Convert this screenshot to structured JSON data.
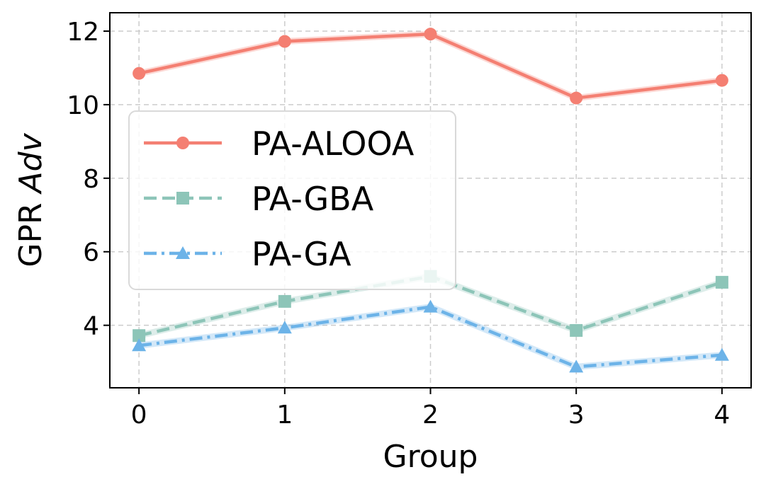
{
  "chart_data": {
    "type": "line",
    "title": "",
    "xlabel": "Group",
    "ylabel_prefix": "GPR ",
    "ylabel_italic": "Adv",
    "x": [
      0,
      1,
      2,
      3,
      4
    ],
    "xticks": [
      "0",
      "1",
      "2",
      "3",
      "4"
    ],
    "xlim": [
      -0.2,
      4.2
    ],
    "yticks": [
      "4",
      "6",
      "8",
      "10",
      "12"
    ],
    "ytick_values": [
      4,
      6,
      8,
      10,
      12
    ],
    "ylim": [
      2.3,
      12.5
    ],
    "grid": true,
    "legend_position": "upper-left",
    "series": [
      {
        "name": "PA-ALOOA",
        "values": [
          10.85,
          11.72,
          11.92,
          10.18,
          10.66
        ],
        "color": "#f47f72",
        "marker": "circle",
        "linestyle": "solid"
      },
      {
        "name": "PA-GBA",
        "values": [
          3.72,
          4.65,
          5.33,
          3.86,
          5.17
        ],
        "color": "#8dc5b8",
        "marker": "square",
        "linestyle": "dashed"
      },
      {
        "name": "PA-GA",
        "values": [
          3.45,
          3.93,
          4.5,
          2.87,
          3.19
        ],
        "color": "#6cb3e8",
        "marker": "triangle",
        "linestyle": "dashdot"
      }
    ]
  }
}
